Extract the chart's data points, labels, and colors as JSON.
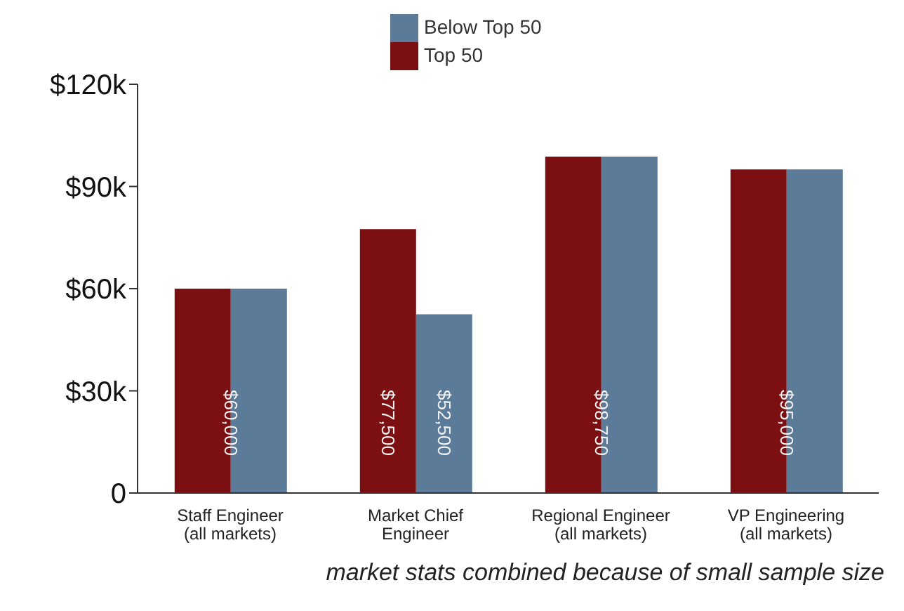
{
  "chart_data": {
    "type": "bar",
    "categories": [
      "Staff Engineer\n(all markets)",
      "Market Chief\nEngineer",
      "Regional Engineer\n(all markets)",
      "VP Engineering\n(all markets)"
    ],
    "series": [
      {
        "name": "Top 50",
        "color": "#7b0f12",
        "values": [
          60000,
          77500,
          98750,
          95000
        ],
        "value_labels": [
          "$60,000",
          "$77,500",
          "$98,750",
          "$95,000"
        ]
      },
      {
        "name": "Below Top 50",
        "color": "#5b7b99",
        "values": [
          60000,
          52500,
          98750,
          95000
        ],
        "value_labels": [
          null,
          "$52,500",
          null,
          null
        ]
      }
    ],
    "ylim": [
      0,
      120000
    ],
    "yticks": [
      0,
      {
        "value": 30000,
        "label": "$30k"
      },
      {
        "value": 60000,
        "label": "$60k"
      },
      {
        "value": 90000,
        "label": "$90k"
      },
      {
        "value": 120000,
        "label": "$120k"
      }
    ],
    "grid": false,
    "legend": "top",
    "annotations": [
      "market stats combined because of small sample size"
    ]
  }
}
